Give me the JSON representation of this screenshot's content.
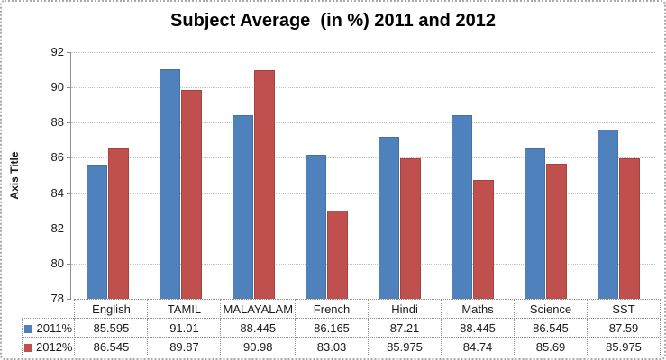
{
  "chart_data": {
    "type": "bar",
    "title": "Subject Average  (in %) 2011 and 2012",
    "xlabel": "",
    "ylabel": "Axis Title",
    "ylim": [
      78,
      92
    ],
    "y_ticks": [
      78,
      80,
      82,
      84,
      86,
      88,
      90,
      92
    ],
    "grid": "horizontal-dotted",
    "legend_position": "data-table-left",
    "categories": [
      "English",
      "TAMIL",
      "MALAYALAM",
      "French",
      "Hindi",
      "Maths",
      "Science",
      "SST"
    ],
    "series": [
      {
        "name": "2011%",
        "color": "#4F81BD",
        "border_color": "#44719f",
        "values": [
          85.595,
          91.01,
          88.445,
          86.165,
          87.21,
          88.445,
          86.545,
          87.59
        ]
      },
      {
        "name": "2012%",
        "color": "#C0504D",
        "border_color": "#a44442",
        "values": [
          86.545,
          89.87,
          90.98,
          83.03,
          85.975,
          84.74,
          85.69,
          85.975
        ]
      }
    ]
  },
  "colors": {
    "gridline": "#c3c3c3",
    "axis_line": "#8e8e8e",
    "table_border": "#8f8f8f",
    "series_2011": "#4F81BD",
    "series_2012": "#C0504D"
  }
}
